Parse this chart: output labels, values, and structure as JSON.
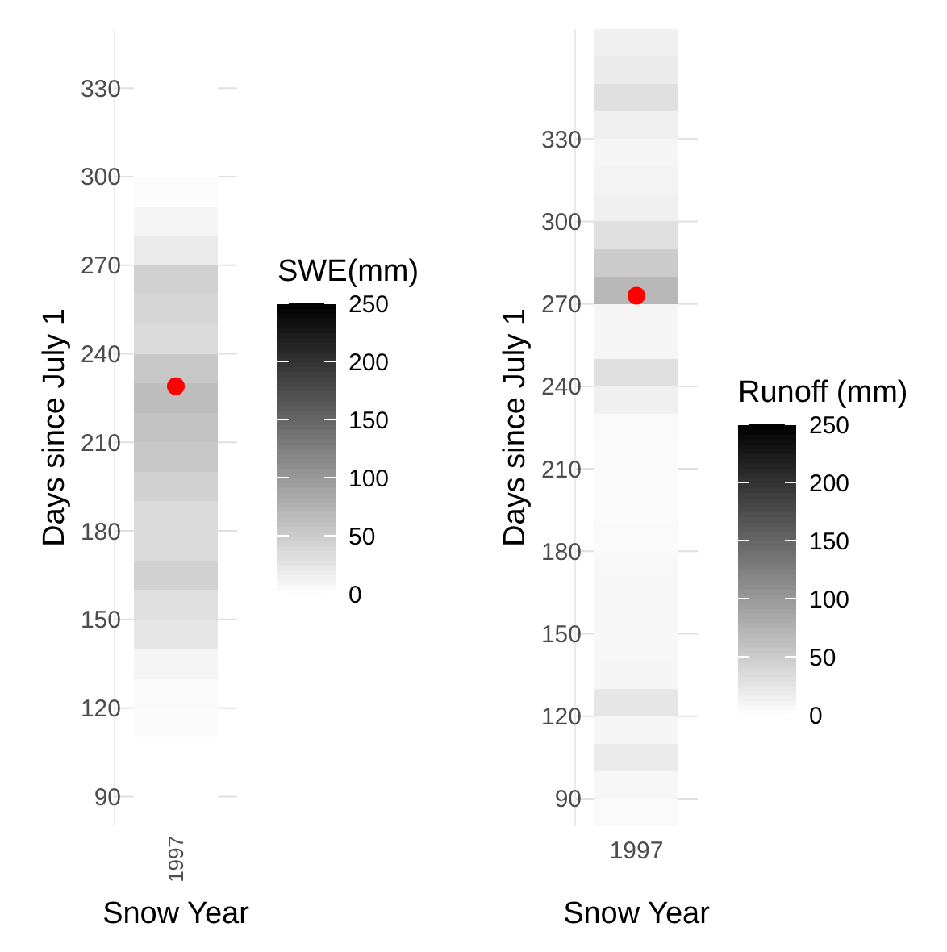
{
  "chart_data": [
    {
      "type": "heatmap",
      "xlabel": "Snow Year",
      "ylabel": "Days since July 1",
      "clabel": "SWE(mm)",
      "categories": [
        "1997"
      ],
      "cells": [
        [
          0
        ],
        [
          0
        ],
        [
          0
        ],
        [
          0
        ],
        [
          0
        ],
        [
          3
        ],
        [
          10
        ],
        [
          20
        ],
        [
          45
        ],
        [
          40
        ],
        [
          35
        ],
        [
          55
        ],
        [
          65
        ],
        [
          60
        ],
        [
          55
        ],
        [
          45
        ],
        [
          35
        ],
        [
          35
        ],
        [
          45
        ],
        [
          30
        ],
        [
          25
        ],
        [
          10
        ],
        [
          5
        ],
        [
          4
        ],
        [
          0
        ],
        [
          0
        ],
        [
          0
        ]
      ],
      "ylim": [
        80,
        350
      ],
      "yticks": [
        90,
        120,
        150,
        180,
        210,
        240,
        270,
        300,
        330
      ],
      "clim": [
        0,
        250
      ],
      "cticks": [
        0,
        50,
        100,
        150,
        200,
        250
      ],
      "grid": "y",
      "series": [
        {
          "type": "scatter",
          "color": "#ff0000",
          "values": [
            229
          ]
        }
      ]
    },
    {
      "type": "heatmap",
      "xlabel": "Snow Year",
      "ylabel": "Days since July 1",
      "clabel": "Runoff (mm)",
      "categories": [
        "1997"
      ],
      "cells": [
        [
          15
        ],
        [
          20
        ],
        [
          30
        ],
        [
          15
        ],
        [
          10
        ],
        [
          12
        ],
        [
          15
        ],
        [
          30
        ],
        [
          50
        ],
        [
          70
        ],
        [
          10
        ],
        [
          10
        ],
        [
          30
        ],
        [
          15
        ],
        [
          5
        ],
        [
          4
        ],
        [
          4
        ],
        [
          4
        ],
        [
          5
        ],
        [
          7
        ],
        [
          8
        ],
        [
          8
        ],
        [
          8
        ],
        [
          10
        ],
        [
          25
        ],
        [
          10
        ],
        [
          20
        ],
        [
          8
        ],
        [
          5
        ]
      ],
      "ylim": [
        80,
        370
      ],
      "yticks": [
        90,
        120,
        150,
        180,
        210,
        240,
        270,
        300,
        330
      ],
      "clim": [
        0,
        250
      ],
      "cticks": [
        0,
        50,
        100,
        150,
        200,
        250
      ],
      "grid": "y",
      "series": [
        {
          "type": "scatter",
          "color": "#ff0000",
          "values": [
            273
          ]
        }
      ]
    }
  ]
}
